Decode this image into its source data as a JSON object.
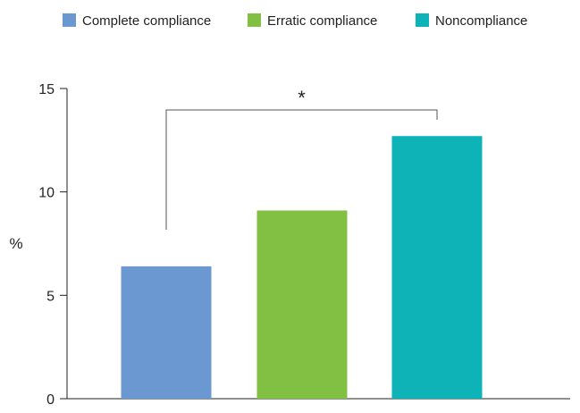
{
  "chart_data": {
    "type": "bar",
    "categories": [
      "Complete compliance",
      "Erratic compliance",
      "Noncompliance"
    ],
    "values": [
      6.4,
      9.1,
      12.7
    ],
    "colors": [
      "#6b98d0",
      "#82c043",
      "#0db3b6"
    ],
    "xlabel": "",
    "ylabel": "%",
    "ylim": [
      0,
      15
    ],
    "yticks": [
      0,
      5,
      10,
      15
    ],
    "grid": false,
    "legend": {
      "position": "top",
      "entries": [
        "Complete compliance",
        "Erratic compliance",
        "Noncompliance"
      ]
    },
    "annotations": [
      {
        "text": "*",
        "type": "significance-bracket",
        "between": [
          "Complete compliance",
          "Noncompliance"
        ]
      }
    ]
  }
}
